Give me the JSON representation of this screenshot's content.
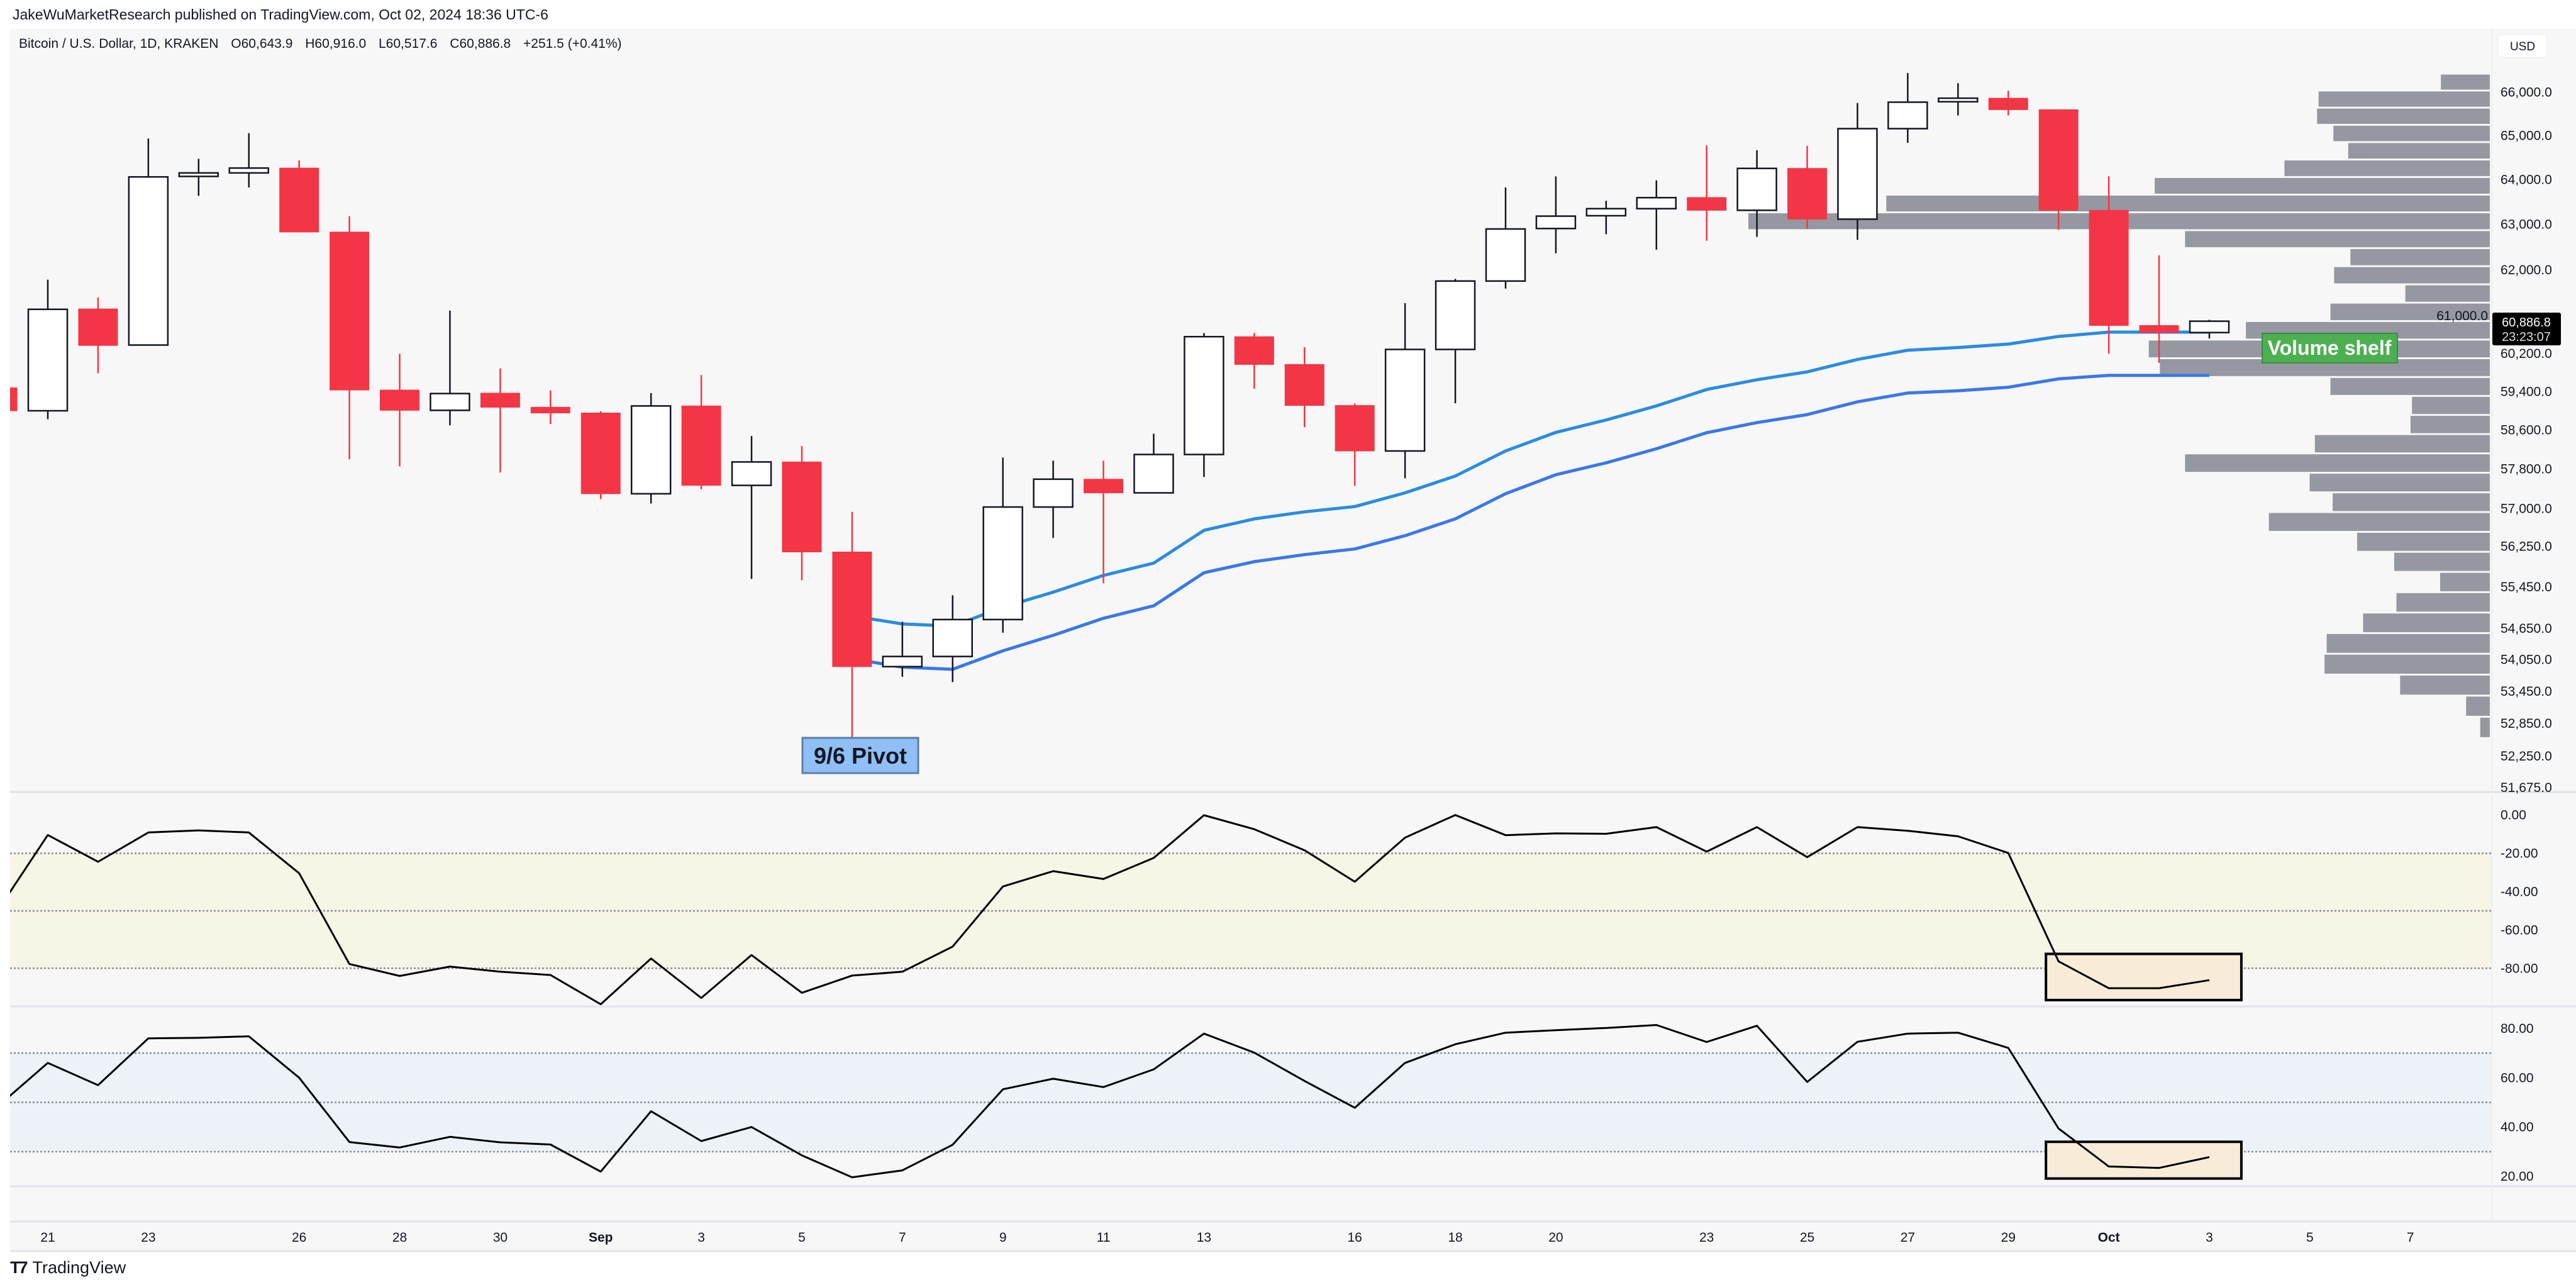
{
  "header": {
    "published": "JakeWuMarketResearch published on TradingView.com, Oct 02, 2024 18:36 UTC-6"
  },
  "symbol": {
    "name": "Bitcoin / U.S. Dollar, 1D, KRAKEN",
    "open": "O60,643.9",
    "high": "H60,916.0",
    "low": "L60,517.6",
    "close": "C60,886.8",
    "change": "+251.5 (+0.41%)"
  },
  "price_axis": {
    "currency": "USD",
    "last_price": "60,886.8",
    "countdown": "23:23:07"
  },
  "annotations": {
    "pivot": "9/6 Pivot",
    "shelf": "Volume shelf"
  },
  "footer": {
    "brand": "TradingView",
    "logo_icon": "tradingview-logo-icon"
  },
  "colors": {
    "down": "#f23645",
    "up_fill": "#ffffff",
    "up_border": "#131722",
    "ema_fast": "#2a8ce0",
    "ema_slow": "#3b78e8",
    "profile": "#9598a1",
    "pivot_bg": "#90bff5",
    "shelf_bg": "#4caf50",
    "osc_band_1": "#f7f5e6",
    "osc_band_2": "#edf1f8",
    "highlight_box": "#f8ecd8"
  },
  "chart_data": [
    {
      "type": "candlestick",
      "scale": "log",
      "dates": [
        "2024-08-20",
        "2024-08-21",
        "2024-08-22",
        "2024-08-23",
        "2024-08-24",
        "2024-08-25",
        "2024-08-26",
        "2024-08-27",
        "2024-08-28",
        "2024-08-29",
        "2024-08-30",
        "2024-08-31",
        "2024-09-01",
        "2024-09-02",
        "2024-09-03",
        "2024-09-04",
        "2024-09-05",
        "2024-09-06",
        "2024-09-07",
        "2024-09-08",
        "2024-09-09",
        "2024-09-10",
        "2024-09-11",
        "2024-09-12",
        "2024-09-13",
        "2024-09-14",
        "2024-09-15",
        "2024-09-16",
        "2024-09-17",
        "2024-09-18",
        "2024-09-19",
        "2024-09-20",
        "2024-09-21",
        "2024-09-22",
        "2024-09-23",
        "2024-09-24",
        "2024-09-25",
        "2024-09-26",
        "2024-09-27",
        "2024-09-28",
        "2024-09-29",
        "2024-09-30",
        "2024-10-01",
        "2024-10-02",
        "2024-10-03"
      ],
      "ohlc": [
        [
          59477,
          59600,
          58998,
          58998
        ],
        [
          58998,
          61782,
          58823,
          61142
        ],
        [
          61151,
          61400,
          59781,
          60369
        ],
        [
          60378,
          64929,
          60378,
          64058
        ],
        [
          64069,
          64468,
          63632,
          64148
        ],
        [
          64148,
          65051,
          63821,
          64258
        ],
        [
          64258,
          64429,
          62827,
          62827
        ],
        [
          62827,
          63180,
          57998,
          59430
        ],
        [
          59430,
          60192,
          57855,
          59007
        ],
        [
          59007,
          61114,
          58696,
          59356
        ],
        [
          59365,
          59883,
          57730,
          59071
        ],
        [
          59071,
          59421,
          58724,
          58952
        ],
        [
          58952,
          58990,
          57194,
          57300
        ],
        [
          57300,
          59365,
          57105,
          59098
        ],
        [
          59098,
          59744,
          57389,
          57469
        ],
        [
          57469,
          58477,
          55608,
          57945
        ],
        [
          57945,
          58270,
          55583,
          56138
        ],
        [
          56138,
          56936,
          52562,
          53918
        ],
        [
          53918,
          54776,
          53727,
          54111
        ],
        [
          54111,
          55289,
          53626,
          54819
        ],
        [
          54819,
          58034,
          54565,
          57033
        ],
        [
          57033,
          57971,
          56417,
          57594
        ],
        [
          57594,
          57971,
          55522,
          57318
        ],
        [
          57318,
          58523,
          57318,
          58097
        ],
        [
          58097,
          60633,
          57639,
          60556
        ],
        [
          60556,
          60633,
          59457,
          59967
        ],
        [
          59967,
          60332,
          58660,
          59108
        ],
        [
          59108,
          59150,
          57460,
          58169
        ],
        [
          58169,
          61276,
          57612,
          60285
        ],
        [
          60285,
          61800,
          59153,
          61753
        ],
        [
          61753,
          63821,
          61590,
          62895
        ],
        [
          62905,
          64069,
          62360,
          63180
        ],
        [
          63189,
          63523,
          62779,
          63346
        ],
        [
          63346,
          63979,
          62437,
          63592
        ],
        [
          63595,
          64772,
          62635,
          63310
        ],
        [
          63310,
          64661,
          62722,
          64250
        ],
        [
          64250,
          64761,
          62898,
          63113
        ],
        [
          63113,
          65745,
          62655,
          65155
        ],
        [
          65155,
          66442,
          64832,
          65765
        ],
        [
          65775,
          66205,
          65459,
          65857
        ],
        [
          65857,
          66030,
          65459,
          65591
        ],
        [
          65591,
          65600,
          62878,
          63310
        ],
        [
          63310,
          64071,
          60194,
          60795
        ],
        [
          60795,
          62315,
          60000,
          60644
        ],
        [
          60643.9,
          60916.0,
          60517.6,
          60886.8
        ]
      ],
      "series": [
        {
          "values": [
            null,
            null,
            null,
            null,
            null,
            null,
            null,
            null,
            null,
            null,
            null,
            null,
            null,
            null,
            null,
            null,
            null,
            54888,
            54734,
            54692,
            55058,
            55350,
            55677,
            55919,
            56567,
            56795,
            56936,
            57042,
            57318,
            57658,
            58169,
            58550,
            58806,
            59098,
            59441,
            59645,
            59811,
            60073,
            60268,
            60325,
            60399,
            60560,
            60653,
            60653,
            60653
          ],
          "color": "#2a8ce0"
        },
        {
          "values": [
            null,
            null,
            null,
            null,
            null,
            null,
            null,
            null,
            null,
            null,
            null,
            null,
            null,
            null,
            null,
            null,
            null,
            54068,
            53909,
            53868,
            54219,
            54515,
            54844,
            55084,
            55729,
            55947,
            56086,
            56198,
            56461,
            56795,
            57300,
            57685,
            57926,
            58215,
            58544,
            58753,
            58918,
            59184,
            59368,
            59413,
            59488,
            59664,
            59738,
            59738,
            59738
          ],
          "color": "#3b78e8"
        }
      ],
      "volume_profile": {
        "price_high": 66430,
        "price_low": 52580,
        "relative_volume_top_to_bottom": [
          6.6,
          23.1,
          23.3,
          21.1,
          19.1,
          27.7,
          45.2,
          81.4,
          100,
          41.1,
          18.8,
          21.0,
          11.4,
          21.5,
          32.9,
          46.0,
          44.5,
          21.5,
          10.5,
          10.7,
          23.6,
          41.1,
          24.3,
          21.2,
          29.8,
          17.9,
          12.9,
          6.7,
          12.6,
          17.1,
          22.0,
          22.3,
          12.1,
          3.2,
          1.3
        ]
      },
      "y_ticks": [
        {
          "value": 66000,
          "label": "66,000.0"
        },
        {
          "value": 65000,
          "label": "65,000.0"
        },
        {
          "value": 64000,
          "label": "64,000.0"
        },
        {
          "value": 63000,
          "label": "63,000.0"
        },
        {
          "value": 62000,
          "label": "62,000.0"
        },
        {
          "value": 61000,
          "label": "61,000.0"
        },
        {
          "value": 60200,
          "label": "60,200.0"
        },
        {
          "value": 59400,
          "label": "59,400.0"
        },
        {
          "value": 58600,
          "label": "58,600.0"
        },
        {
          "value": 57800,
          "label": "57,800.0"
        },
        {
          "value": 57000,
          "label": "57,000.0"
        },
        {
          "value": 56250,
          "label": "56,250.0"
        },
        {
          "value": 55450,
          "label": "55,450.0"
        },
        {
          "value": 54650,
          "label": "54,650.0"
        },
        {
          "value": 54050,
          "label": "54,050.0"
        },
        {
          "value": 53450,
          "label": "53,450.0"
        },
        {
          "value": 52850,
          "label": "52,850.0"
        },
        {
          "value": 52250,
          "label": "52,250.0"
        },
        {
          "value": 51675,
          "label": "51,675.0"
        }
      ],
      "x_ticks": [
        {
          "date": "2024-08-21",
          "label": "21"
        },
        {
          "date": "2024-08-23",
          "label": "23"
        },
        {
          "date": "2024-08-26",
          "label": "26"
        },
        {
          "date": "2024-08-28",
          "label": "28"
        },
        {
          "date": "2024-08-30",
          "label": "30"
        },
        {
          "date": "2024-09-01",
          "label": "Sep",
          "bold": true
        },
        {
          "date": "2024-09-03",
          "label": "3"
        },
        {
          "date": "2024-09-05",
          "label": "5"
        },
        {
          "date": "2024-09-07",
          "label": "7"
        },
        {
          "date": "2024-09-09",
          "label": "9"
        },
        {
          "date": "2024-09-11",
          "label": "11"
        },
        {
          "date": "2024-09-13",
          "label": "13"
        },
        {
          "date": "2024-09-16",
          "label": "16"
        },
        {
          "date": "2024-09-18",
          "label": "18"
        },
        {
          "date": "2024-09-20",
          "label": "20"
        },
        {
          "date": "2024-09-23",
          "label": "23"
        },
        {
          "date": "2024-09-25",
          "label": "25"
        },
        {
          "date": "2024-09-27",
          "label": "27"
        },
        {
          "date": "2024-09-29",
          "label": "29"
        },
        {
          "date": "2024-10-01",
          "label": "Oct",
          "bold": true
        },
        {
          "date": "2024-10-03",
          "label": "3"
        },
        {
          "date": "2024-10-05",
          "label": "5"
        },
        {
          "date": "2024-10-07",
          "label": "7"
        }
      ]
    },
    {
      "type": "line",
      "values": [
        -50,
        -10.4,
        -24.4,
        -9.1,
        -8.0,
        -9.1,
        -30.4,
        -77.8,
        -84.0,
        -79.1,
        -81.8,
        -83.5,
        -98.8,
        -74.9,
        -95.5,
        -73.1,
        -92.8,
        -83.8,
        -81.8,
        -68.7,
        -37.3,
        -29.3,
        -33.4,
        -22.4,
        -0.1,
        -7.4,
        -18.4,
        -34.8,
        -11.8,
        0,
        -10.5,
        -9.6,
        -9.8,
        -6.3,
        -19.1,
        -6.3,
        -22.0,
        -6.3,
        -8.2,
        -11.1,
        -19.8,
        -76.4,
        -90.4,
        -90.4,
        -86.2
      ],
      "levels": [
        -20,
        -50,
        -80
      ],
      "band": [
        -20,
        -80
      ],
      "y_ticks": [
        {
          "value": 0,
          "label": "0.00"
        },
        {
          "value": -20,
          "label": "-20.00"
        },
        {
          "value": -40,
          "label": "-40.00"
        },
        {
          "value": -60,
          "label": "-60.00"
        },
        {
          "value": -80,
          "label": "-80.00"
        }
      ],
      "highlight": {
        "from": "2024-09-30",
        "to": "2024-10-04",
        "top": -72.5,
        "bottom": -96.6
      }
    },
    {
      "type": "line",
      "values": [
        48.3,
        66.0,
        57.0,
        76.0,
        76.2,
        76.8,
        60.0,
        33.9,
        31.7,
        36.0,
        33.8,
        32.9,
        21.9,
        46.4,
        34.3,
        40.0,
        28.5,
        19.6,
        22.4,
        32.8,
        55.3,
        59.6,
        56.2,
        63.4,
        77.9,
        70.2,
        58.7,
        47.8,
        66.0,
        73.6,
        78.3,
        79.3,
        80.2,
        81.4,
        74.5,
        81.1,
        58.3,
        74.6,
        77.9,
        78.3,
        72.1,
        39.4,
        24.0,
        23.4,
        27.8
      ],
      "levels": [
        70,
        50,
        30
      ],
      "band": [
        70,
        30
      ],
      "y_ticks": [
        {
          "value": 80,
          "label": "80.00"
        },
        {
          "value": 60,
          "label": "60.00"
        },
        {
          "value": 40,
          "label": "40.00"
        },
        {
          "value": 20,
          "label": "20.00"
        }
      ],
      "highlight": {
        "from": "2024-09-30",
        "to": "2024-10-04",
        "top": 34.0,
        "bottom": 19.1
      }
    }
  ]
}
